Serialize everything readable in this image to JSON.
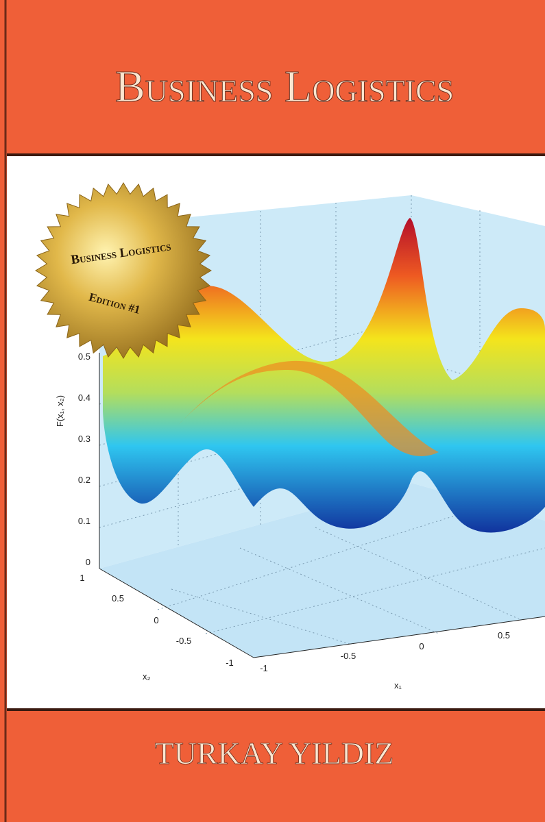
{
  "cover": {
    "title": "Business Logistics",
    "seal": {
      "top": "Business Logistics",
      "bottom": "Edition #1"
    },
    "author": "TURKAY YILDIZ"
  },
  "figure": {
    "z_label": "F(x₁, x₂)",
    "x1_label": "x₁",
    "x2_label": "x₂",
    "z_ticks": [
      "0",
      "0.1",
      "0.2",
      "0.3",
      "0.4",
      "0.5"
    ],
    "x1_ticks": [
      "-1",
      "-0.5",
      "0",
      "0.5"
    ],
    "x2_ticks": [
      "1",
      "0.5",
      "0",
      "-0.5",
      "-1"
    ]
  }
}
